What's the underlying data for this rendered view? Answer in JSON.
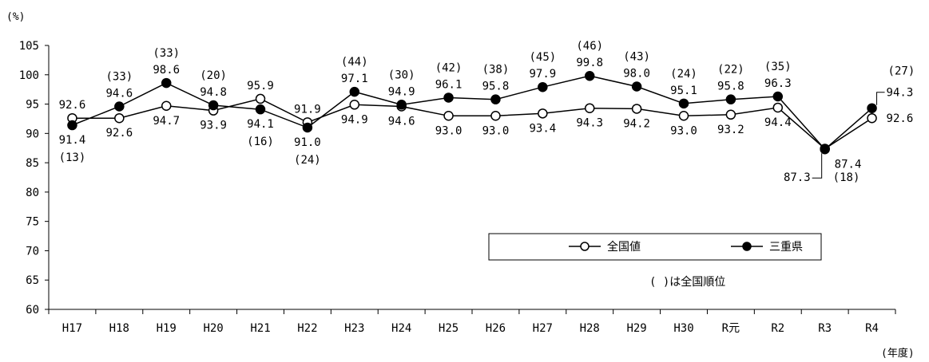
{
  "chart_data": {
    "type": "line",
    "y_unit": "(%)",
    "x_unit": "(年度)",
    "categories": [
      "H17",
      "H18",
      "H19",
      "H20",
      "H21",
      "H22",
      "H23",
      "H24",
      "H25",
      "H26",
      "H27",
      "H28",
      "H29",
      "H30",
      "R元",
      "R2",
      "R3",
      "R4"
    ],
    "ylim": [
      60,
      105
    ],
    "yticks": [
      60,
      65,
      70,
      75,
      80,
      85,
      90,
      95,
      100,
      105
    ],
    "grid": false,
    "legend_position": "right, inside plot",
    "legend_note": "( )は全国順位",
    "series": [
      {
        "name": "全国値",
        "marker": "open-circle",
        "color": "#000000",
        "values": [
          92.6,
          92.6,
          94.7,
          93.9,
          95.9,
          91.9,
          94.9,
          94.6,
          93.0,
          93.0,
          93.4,
          94.3,
          94.2,
          93.0,
          93.2,
          94.4,
          87.4,
          92.6
        ],
        "value_labels": [
          "92.6",
          "92.6",
          "94.7",
          "93.9",
          "95.9",
          "91.9",
          "94.9",
          "94.6",
          "93.0",
          "93.0",
          "93.4",
          "94.3",
          "94.2",
          "93.0",
          "93.2",
          "94.4",
          "87.4",
          "92.6"
        ]
      },
      {
        "name": "三重県",
        "marker": "filled-circle",
        "color": "#000000",
        "values": [
          91.4,
          94.6,
          98.6,
          94.8,
          94.1,
          91.0,
          97.1,
          94.9,
          96.1,
          95.8,
          97.9,
          99.8,
          98.0,
          95.1,
          95.8,
          96.3,
          87.3,
          94.3
        ],
        "value_labels": [
          "91.4",
          "94.6",
          "98.6",
          "94.8",
          "94.1",
          "91.0",
          "97.1",
          "94.9",
          "96.1",
          "95.8",
          "97.9",
          "99.8",
          "98.0",
          "95.1",
          "95.8",
          "96.3",
          "87.3",
          "94.3"
        ],
        "ranks": [
          "(13)",
          "(33)",
          "(33)",
          "(20)",
          "(16)",
          "(24)",
          "(44)",
          "(30)",
          "(42)",
          "(38)",
          "(45)",
          "(46)",
          "(43)",
          "(24)",
          "(22)",
          "(35)",
          "(18)",
          "(27)"
        ]
      }
    ]
  }
}
